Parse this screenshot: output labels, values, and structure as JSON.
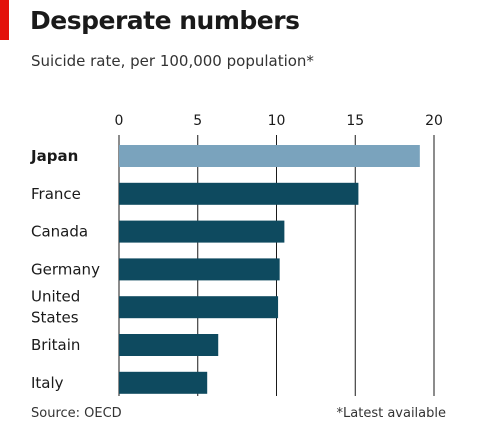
{
  "colors": {
    "red_tag": "#e3120b",
    "highlight_bar": "#7aa3bd",
    "bar": "#0e4a5f",
    "grid": "#1a1a1a",
    "text": "#1a1a1a"
  },
  "header": {
    "title": "Desperate numbers",
    "subtitle": "Suicide rate, per 100,000 population*"
  },
  "footer": {
    "source": "Source: OECD",
    "note": "*Latest available"
  },
  "chart_data": {
    "type": "bar",
    "orientation": "horizontal",
    "title": "Desperate numbers",
    "subtitle": "Suicide rate, per 100,000 population*",
    "categories": [
      "Japan",
      "France",
      "Canada",
      "Germany",
      "United States",
      "Britain",
      "Italy"
    ],
    "category_lines": [
      [
        "Japan"
      ],
      [
        "France"
      ],
      [
        "Canada"
      ],
      [
        "Germany"
      ],
      [
        "United",
        "States"
      ],
      [
        "Britain"
      ],
      [
        "Italy"
      ]
    ],
    "values": [
      19.1,
      15.2,
      10.5,
      10.2,
      10.1,
      6.3,
      5.6
    ],
    "highlight": "Japan",
    "xlim": [
      0,
      20
    ],
    "ticks": [
      0,
      5,
      10,
      15,
      20
    ],
    "tick_labels": [
      "0",
      "5",
      "10",
      "15",
      "20"
    ],
    "axis_position": "top",
    "grid": true
  }
}
